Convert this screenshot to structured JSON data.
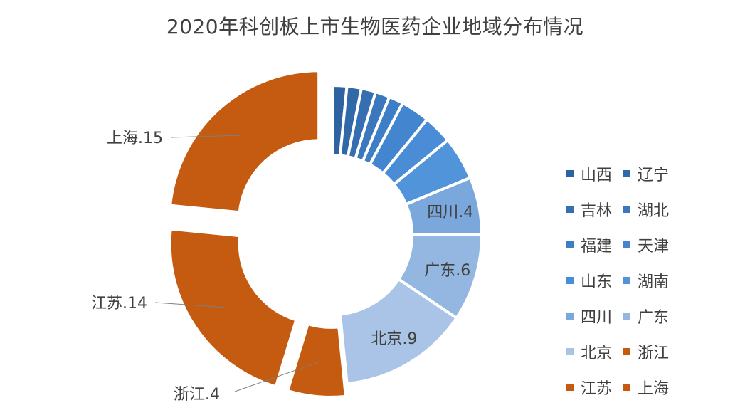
{
  "chart_data": {
    "type": "donut",
    "title": "2020年科创板上市生物医药企业地域分布情况",
    "slices": [
      {
        "name": "山西",
        "value": 1,
        "color": "#2f62a0"
      },
      {
        "name": "辽宁",
        "value": 1,
        "color": "#3168a8"
      },
      {
        "name": "吉林",
        "value": 1,
        "color": "#356fb2"
      },
      {
        "name": "湖北",
        "value": 1,
        "color": "#3a77bd"
      },
      {
        "name": "福建",
        "value": 1,
        "color": "#3e7ec6"
      },
      {
        "name": "天津",
        "value": 2,
        "color": "#4385cf"
      },
      {
        "name": "山东",
        "value": 2,
        "color": "#4a8cd6"
      },
      {
        "name": "湖南",
        "value": 3,
        "color": "#5294da"
      },
      {
        "name": "四川",
        "value": 4,
        "color": "#7aa8dc",
        "label": "四川.4"
      },
      {
        "name": "广东",
        "value": 6,
        "color": "#93b7e0",
        "label": "广东.6"
      },
      {
        "name": "北京",
        "value": 9,
        "color": "#a9c4e6",
        "label": "北京.9"
      },
      {
        "name": "浙江",
        "value": 4,
        "color": "#c55a11",
        "label": "浙江.4",
        "explode": 18,
        "outside": true
      },
      {
        "name": "江苏",
        "value": 14,
        "color": "#c55a11",
        "label": "江苏.14",
        "explode": 22,
        "outside": true
      },
      {
        "name": "上海",
        "value": 15,
        "color": "#c55a11",
        "label": "上海.15",
        "explode": 28,
        "outside": true
      }
    ],
    "legend_position": "right"
  }
}
